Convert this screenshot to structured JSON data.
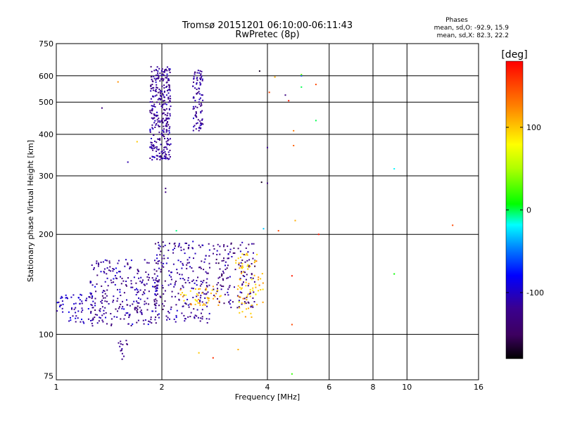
{
  "chart_data": {
    "type": "scatter",
    "title": "Tromsø 20151201 06:10:00-06:11:43",
    "subtitle": "RwPretec (8p)",
    "xlabel": "Frequency [MHz]",
    "ylabel": "Stationary phase Virtual Height [km]",
    "x_scale": "log",
    "y_scale": "log",
    "xlim": [
      1,
      16
    ],
    "ylim": [
      73,
      750
    ],
    "x_ticks": [
      1,
      2,
      4,
      6,
      8,
      10,
      16
    ],
    "x_tick_labels": [
      "1",
      "2",
      "4",
      "6",
      "8",
      "10",
      "16"
    ],
    "y_ticks": [
      75,
      100,
      200,
      300,
      400,
      500,
      600,
      750
    ],
    "y_tick_labels": [
      "75",
      "100",
      "200",
      "300",
      "400",
      "500",
      "600",
      "750"
    ],
    "grid": true,
    "phase_stats": {
      "heading": "Phases",
      "line_o": "mean, sd,O: -92.9, 15.9",
      "line_x": "mean, sd,X: 82.3, 22.2"
    },
    "colorbar": {
      "label": "[deg]",
      "range": [
        -180,
        180
      ],
      "ticks": [
        100,
        0,
        -100
      ],
      "tick_labels": [
        "100",
        "0",
        "-100"
      ],
      "colormap": "rainbow"
    },
    "clusters": [
      {
        "xmin": 1.85,
        "xmax": 2.12,
        "ymin": 335,
        "ymax": 645,
        "count": 330,
        "phase_mean": -118,
        "phase_sd": 10
      },
      {
        "xmin": 2.45,
        "xmax": 2.62,
        "ymin": 410,
        "ymax": 625,
        "count": 90,
        "phase_mean": -118,
        "phase_sd": 10
      },
      {
        "xmin": 1.0,
        "xmax": 1.28,
        "ymin": 108,
        "ymax": 132,
        "count": 70,
        "phase_mean": -105,
        "phase_sd": 14
      },
      {
        "xmin": 1.25,
        "xmax": 1.95,
        "ymin": 106,
        "ymax": 168,
        "count": 260,
        "phase_mean": -118,
        "phase_sd": 14
      },
      {
        "xmin": 1.9,
        "xmax": 2.75,
        "ymin": 108,
        "ymax": 192,
        "count": 250,
        "phase_mean": -120,
        "phase_sd": 14
      },
      {
        "xmin": 2.8,
        "xmax": 3.7,
        "ymin": 120,
        "ymax": 190,
        "count": 140,
        "phase_mean": -125,
        "phase_sd": 15
      },
      {
        "xmin": 2.25,
        "xmax": 2.95,
        "ymin": 122,
        "ymax": 140,
        "count": 45,
        "phase_mean": 105,
        "phase_sd": 12
      },
      {
        "xmin": 3.25,
        "xmax": 3.9,
        "ymin": 112,
        "ymax": 178,
        "count": 75,
        "phase_mean": 100,
        "phase_sd": 15
      },
      {
        "xmin": 1.5,
        "xmax": 1.6,
        "ymin": 84,
        "ymax": 96,
        "count": 14,
        "phase_mean": -125,
        "phase_sd": 8
      }
    ],
    "points": [
      {
        "x": 1.35,
        "y": 480,
        "phase": -130
      },
      {
        "x": 1.5,
        "y": 575,
        "phase": 120
      },
      {
        "x": 1.6,
        "y": 330,
        "phase": -110
      },
      {
        "x": 1.7,
        "y": 380,
        "phase": 100
      },
      {
        "x": 2.05,
        "y": 275,
        "phase": -130
      },
      {
        "x": 2.05,
        "y": 268,
        "phase": -130
      },
      {
        "x": 2.2,
        "y": 205,
        "phase": -5
      },
      {
        "x": 2.55,
        "y": 88,
        "phase": 100
      },
      {
        "x": 2.8,
        "y": 85,
        "phase": 160
      },
      {
        "x": 3.3,
        "y": 90,
        "phase": 110
      },
      {
        "x": 3.8,
        "y": 620,
        "phase": -170
      },
      {
        "x": 4.0,
        "y": 365,
        "phase": -120
      },
      {
        "x": 4.05,
        "y": 535,
        "phase": 150
      },
      {
        "x": 4.2,
        "y": 595,
        "phase": 110
      },
      {
        "x": 3.85,
        "y": 287,
        "phase": -170
      },
      {
        "x": 4.0,
        "y": 285,
        "phase": -130
      },
      {
        "x": 3.9,
        "y": 208,
        "phase": -30
      },
      {
        "x": 4.3,
        "y": 205,
        "phase": 150
      },
      {
        "x": 4.5,
        "y": 525,
        "phase": -130
      },
      {
        "x": 4.6,
        "y": 505,
        "phase": 170
      },
      {
        "x": 4.75,
        "y": 410,
        "phase": 130
      },
      {
        "x": 4.75,
        "y": 370,
        "phase": 140
      },
      {
        "x": 4.8,
        "y": 220,
        "phase": 110
      },
      {
        "x": 5.0,
        "y": 555,
        "phase": 0
      },
      {
        "x": 5.0,
        "y": 600,
        "phase": -60
      },
      {
        "x": 5.5,
        "y": 565,
        "phase": 150
      },
      {
        "x": 5.5,
        "y": 440,
        "phase": 0
      },
      {
        "x": 5.6,
        "y": 200,
        "phase": 170
      },
      {
        "x": 4.7,
        "y": 107,
        "phase": 150
      },
      {
        "x": 4.7,
        "y": 150,
        "phase": 170
      },
      {
        "x": 4.7,
        "y": 76,
        "phase": 20
      },
      {
        "x": 5.0,
        "y": 605,
        "phase": 30
      },
      {
        "x": 9.2,
        "y": 315,
        "phase": -20
      },
      {
        "x": 9.2,
        "y": 152,
        "phase": 10
      },
      {
        "x": 13.5,
        "y": 213,
        "phase": 150
      }
    ]
  }
}
